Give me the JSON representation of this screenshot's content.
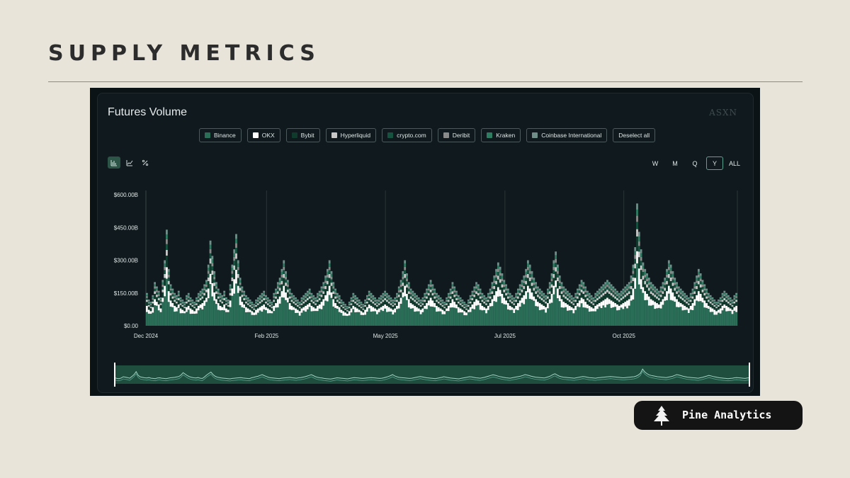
{
  "page": {
    "title": "SUPPLY METRICS"
  },
  "card": {
    "title": "Futures Volume",
    "watermark": "ASXN"
  },
  "legend": [
    {
      "label": "Binance",
      "color": "#2b6e58"
    },
    {
      "label": "OKX",
      "color": "#ffffff"
    },
    {
      "label": "Bybit",
      "color": "#0f3a2c"
    },
    {
      "label": "Hyperliquid",
      "color": "#c8c8c8"
    },
    {
      "label": "crypto.com",
      "color": "#15523f"
    },
    {
      "label": "Deribit",
      "color": "#8a8a8a"
    },
    {
      "label": "Kraken",
      "color": "#2e7d63"
    },
    {
      "label": "Coinbase International",
      "color": "#6f8e8a"
    },
    {
      "label": "Deselect all",
      "color": ""
    }
  ],
  "view_toggles": [
    {
      "icon": "bar-chart-icon",
      "active": true
    },
    {
      "icon": "line-chart-icon",
      "active": false
    },
    {
      "icon": "percent-icon",
      "active": false
    }
  ],
  "range_buttons": [
    {
      "label": "W",
      "active": false
    },
    {
      "label": "M",
      "active": false
    },
    {
      "label": "Q",
      "active": false
    },
    {
      "label": "Y",
      "active": true
    },
    {
      "label": "ALL",
      "active": false
    }
  ],
  "brand": {
    "name": "Pine Analytics",
    "icon": "pine-tree-icon"
  },
  "chart_data": {
    "type": "bar",
    "stacked": true,
    "title": "Futures Volume",
    "xlabel": "",
    "ylabel": "",
    "ylim": [
      0,
      600
    ],
    "y_unit": "B USD",
    "y_ticks": [
      "$0.00",
      "$150.00B",
      "$300.00B",
      "$450.00B",
      "$600.00B"
    ],
    "x_ticks": [
      "Dec 2024",
      "Feb 2025",
      "May 2025",
      "Jul 2025",
      "Oct 2025"
    ],
    "grid": false,
    "legend_position": "top",
    "series": [
      {
        "name": "Binance",
        "color": "#2b6e58"
      },
      {
        "name": "OKX",
        "color": "#ffffff"
      },
      {
        "name": "Bybit",
        "color": "#0f3a2c"
      },
      {
        "name": "Hyperliquid",
        "color": "#c8c8c8"
      },
      {
        "name": "crypto.com",
        "color": "#15523f"
      },
      {
        "name": "Deribit",
        "color": "#8a8a8a"
      },
      {
        "name": "Kraken",
        "color": "#2e7d63"
      },
      {
        "name": "Coinbase International",
        "color": "#6f8e8a"
      }
    ],
    "daily_totals": [
      150,
      120,
      110,
      140,
      200,
      180,
      160,
      130,
      210,
      300,
      440,
      260,
      190,
      170,
      150,
      140,
      160,
      130,
      120,
      110,
      140,
      150,
      130,
      120,
      110,
      130,
      150,
      160,
      170,
      190,
      210,
      280,
      390,
      320,
      250,
      200,
      170,
      150,
      140,
      160,
      130,
      120,
      190,
      280,
      350,
      420,
      300,
      220,
      180,
      160,
      140,
      130,
      120,
      110,
      100,
      120,
      130,
      140,
      150,
      160,
      140,
      130,
      120,
      110,
      150,
      170,
      200,
      220,
      260,
      300,
      250,
      210,
      170,
      150,
      140,
      130,
      120,
      110,
      130,
      140,
      150,
      160,
      170,
      150,
      140,
      130,
      150,
      160,
      180,
      200,
      230,
      260,
      300,
      250,
      200,
      170,
      150,
      140,
      120,
      110,
      100,
      90,
      110,
      130,
      150,
      140,
      130,
      120,
      110,
      100,
      120,
      140,
      160,
      150,
      140,
      130,
      120,
      130,
      140,
      150,
      160,
      150,
      140,
      130,
      120,
      130,
      150,
      180,
      210,
      250,
      300,
      240,
      200,
      170,
      160,
      150,
      140,
      130,
      120,
      130,
      150,
      170,
      190,
      210,
      190,
      170,
      150,
      140,
      130,
      120,
      110,
      130,
      150,
      170,
      200,
      180,
      160,
      140,
      130,
      120,
      110,
      100,
      120,
      140,
      160,
      180,
      200,
      190,
      170,
      150,
      140,
      130,
      150,
      170,
      200,
      230,
      260,
      290,
      270,
      240,
      210,
      190,
      170,
      150,
      140,
      130,
      150,
      170,
      190,
      210,
      230,
      260,
      300,
      280,
      250,
      220,
      200,
      180,
      170,
      160,
      150,
      140,
      170,
      200,
      240,
      300,
      340,
      280,
      230,
      200,
      180,
      170,
      160,
      150,
      140,
      130,
      150,
      170,
      190,
      210,
      200,
      180,
      160,
      150,
      140,
      130,
      150,
      160,
      170,
      180,
      190,
      200,
      210,
      200,
      190,
      180,
      170,
      160,
      150,
      160,
      170,
      180,
      190,
      200,
      230,
      280,
      360,
      560,
      430,
      350,
      290,
      260,
      240,
      220,
      200,
      190,
      180,
      170,
      160,
      180,
      200,
      220,
      260,
      300,
      280,
      250,
      220,
      200,
      180,
      170,
      160,
      150,
      140,
      130,
      150,
      170,
      200,
      230,
      260,
      240,
      210,
      190,
      170,
      150,
      140,
      130,
      120,
      110,
      120,
      130,
      150,
      160,
      150,
      140,
      130,
      120,
      140,
      150
    ]
  }
}
